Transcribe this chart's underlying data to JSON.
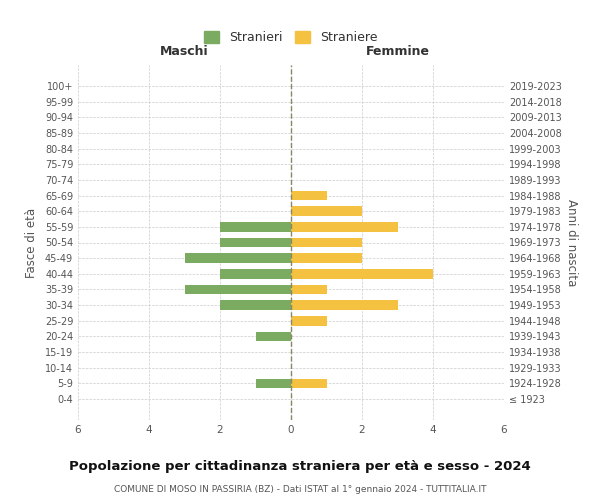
{
  "age_groups": [
    "100+",
    "95-99",
    "90-94",
    "85-89",
    "80-84",
    "75-79",
    "70-74",
    "65-69",
    "60-64",
    "55-59",
    "50-54",
    "45-49",
    "40-44",
    "35-39",
    "30-34",
    "25-29",
    "20-24",
    "15-19",
    "10-14",
    "5-9",
    "0-4"
  ],
  "birth_years": [
    "≤ 1923",
    "1924-1928",
    "1929-1933",
    "1934-1938",
    "1939-1943",
    "1944-1948",
    "1949-1953",
    "1954-1958",
    "1959-1963",
    "1964-1968",
    "1969-1973",
    "1974-1978",
    "1979-1983",
    "1984-1988",
    "1989-1993",
    "1994-1998",
    "1999-2003",
    "2004-2008",
    "2009-2013",
    "2014-2018",
    "2019-2023"
  ],
  "maschi": [
    0,
    0,
    0,
    0,
    0,
    0,
    0,
    0,
    0,
    2,
    2,
    3,
    2,
    3,
    2,
    0,
    1,
    0,
    0,
    1,
    0
  ],
  "femmine": [
    0,
    0,
    0,
    0,
    0,
    0,
    0,
    1,
    2,
    3,
    2,
    2,
    4,
    1,
    3,
    1,
    0,
    0,
    0,
    1,
    0
  ],
  "color_maschi": "#7aab60",
  "color_femmine": "#f5c140",
  "title": "Popolazione per cittadinanza straniera per età e sesso - 2024",
  "subtitle": "COMUNE DI MOSO IN PASSIRIA (BZ) - Dati ISTAT al 1° gennaio 2024 - TUTTITALIA.IT",
  "xlabel_left": "Maschi",
  "xlabel_right": "Femmine",
  "ylabel_left": "Fasce di età",
  "ylabel_right": "Anni di nascita",
  "legend_maschi": "Stranieri",
  "legend_femmine": "Straniere",
  "xlim": 6,
  "background_color": "#ffffff",
  "grid_color": "#cccccc",
  "axis_label_color": "#555555"
}
